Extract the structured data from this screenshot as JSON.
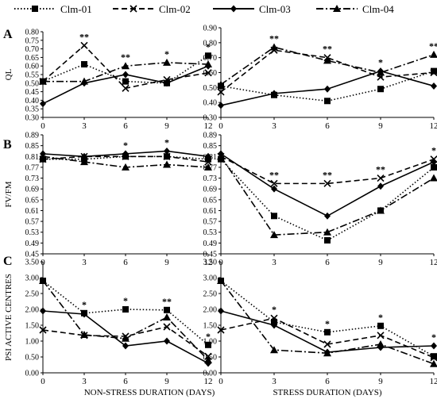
{
  "legend": {
    "placement": "top",
    "items": [
      {
        "name": "Clm-01",
        "marker": "square",
        "dash": "dotted"
      },
      {
        "name": "Clm-02",
        "marker": "x",
        "dash": "dashed"
      },
      {
        "name": "Clm-03",
        "marker": "diamond",
        "dash": "solid"
      },
      {
        "name": "Clm-04",
        "marker": "triangle",
        "dash": "dashdot"
      }
    ]
  },
  "row_labels": [
    "A",
    "B",
    "C"
  ],
  "x_axis_labels": [
    "NON-STRESS DURATION (DAYS)",
    "STRESS DURATION (DAYS)"
  ],
  "chart_data": [
    {
      "type": "line",
      "panel": "A-left",
      "ylabel": "QL",
      "xlabel": "",
      "x": [
        0,
        3,
        6,
        9,
        12
      ],
      "ylim": [
        0.3,
        0.8
      ],
      "yticks": [
        "0.30",
        "0.35",
        "0.40",
        "0.45",
        "0.50",
        "0.55",
        "0.60",
        "0.65",
        "0.70",
        "0.75",
        "0.80"
      ],
      "series": [
        {
          "name": "Clm-01",
          "values": [
            0.51,
            0.61,
            0.51,
            0.5,
            0.66
          ]
        },
        {
          "name": "Clm-02",
          "values": [
            0.51,
            0.72,
            0.47,
            0.52,
            0.56
          ]
        },
        {
          "name": "Clm-03",
          "values": [
            0.38,
            0.5,
            0.55,
            0.5,
            0.6
          ]
        },
        {
          "name": "Clm-04",
          "values": [
            0.51,
            0.51,
            0.6,
            0.62,
            0.61
          ]
        }
      ],
      "annotations": [
        {
          "x": 3,
          "label": "**"
        },
        {
          "x": 6,
          "label": "**"
        },
        {
          "x": 9,
          "label": "*"
        },
        {
          "x": 12,
          "label": "*"
        }
      ]
    },
    {
      "type": "line",
      "panel": "A-right",
      "ylabel": "",
      "xlabel": "",
      "x": [
        0,
        3,
        6,
        9,
        12
      ],
      "ylim": [
        0.3,
        0.9
      ],
      "yticks": [
        "0.30",
        "0.40",
        "0.50",
        "0.60",
        "0.70",
        "0.80",
        "0.90"
      ],
      "series": [
        {
          "name": "Clm-01",
          "values": [
            0.51,
            0.45,
            0.41,
            0.49,
            0.61
          ]
        },
        {
          "name": "Clm-02",
          "values": [
            0.47,
            0.75,
            0.7,
            0.57,
            0.6
          ]
        },
        {
          "name": "Clm-03",
          "values": [
            0.38,
            0.46,
            0.49,
            0.61,
            0.51
          ]
        },
        {
          "name": "Clm-04",
          "values": [
            0.52,
            0.77,
            0.68,
            0.6,
            0.72
          ]
        }
      ],
      "annotations": [
        {
          "x": 3,
          "label": "**"
        },
        {
          "x": 6,
          "label": "**"
        },
        {
          "x": 9,
          "label": "*"
        },
        {
          "x": 12,
          "label": "**"
        }
      ]
    },
    {
      "type": "line",
      "panel": "B-left",
      "ylabel": "FV/FM",
      "xlabel": "",
      "x": [
        0,
        3,
        6,
        9,
        12
      ],
      "ylim": [
        0.45,
        0.89
      ],
      "yticks": [
        "0.45",
        "0.49",
        "0.53",
        "0.57",
        "0.61",
        "0.65",
        "0.69",
        "0.73",
        "0.77",
        "0.81",
        "0.85",
        "0.89"
      ],
      "series": [
        {
          "name": "Clm-01",
          "values": [
            0.8,
            0.8,
            0.81,
            0.81,
            0.8
          ]
        },
        {
          "name": "Clm-02",
          "values": [
            0.8,
            0.81,
            0.81,
            0.81,
            0.79
          ]
        },
        {
          "name": "Clm-03",
          "values": [
            0.82,
            0.81,
            0.82,
            0.83,
            0.81
          ]
        },
        {
          "name": "Clm-04",
          "values": [
            0.81,
            0.79,
            0.77,
            0.78,
            0.77
          ]
        }
      ],
      "annotations": [
        {
          "x": 6,
          "label": "*"
        },
        {
          "x": 9,
          "label": "*"
        }
      ]
    },
    {
      "type": "line",
      "panel": "B-right",
      "ylabel": "",
      "xlabel": "",
      "x": [
        0,
        3,
        6,
        9,
        12
      ],
      "ylim": [
        0.45,
        0.89
      ],
      "yticks": [
        "0.45",
        "0.49",
        "0.53",
        "0.57",
        "0.61",
        "0.65",
        "0.69",
        "0.73",
        "0.77",
        "0.81",
        "0.85",
        "0.89"
      ],
      "series": [
        {
          "name": "Clm-01",
          "values": [
            0.8,
            0.59,
            0.5,
            0.61,
            0.77
          ]
        },
        {
          "name": "Clm-02",
          "values": [
            0.81,
            0.71,
            0.71,
            0.73,
            0.8
          ]
        },
        {
          "name": "Clm-03",
          "values": [
            0.82,
            0.69,
            0.59,
            0.7,
            0.79
          ]
        },
        {
          "name": "Clm-04",
          "values": [
            0.81,
            0.52,
            0.53,
            0.61,
            0.73
          ]
        }
      ],
      "annotations": [
        {
          "x": 3,
          "label": "**"
        },
        {
          "x": 6,
          "label": "**"
        },
        {
          "x": 9,
          "label": "**"
        },
        {
          "x": 12,
          "label": "*"
        }
      ]
    },
    {
      "type": "line",
      "panel": "C-left",
      "ylabel": "PSI ACTIVE CENTRES",
      "xlabel": "NON-STRESS DURATION (DAYS)",
      "x": [
        0,
        3,
        6,
        9,
        12
      ],
      "ylim": [
        0.0,
        3.5
      ],
      "yticks": [
        "0.00",
        "0.50",
        "1.00",
        "1.50",
        "2.00",
        "2.50",
        "3.00",
        "3.50"
      ],
      "series": [
        {
          "name": "Clm-01",
          "values": [
            2.9,
            1.88,
            2.0,
            1.98,
            0.88
          ]
        },
        {
          "name": "Clm-02",
          "values": [
            1.35,
            1.18,
            1.15,
            1.45,
            0.52
          ]
        },
        {
          "name": "Clm-03",
          "values": [
            1.95,
            1.85,
            0.85,
            1.0,
            0.3
          ]
        },
        {
          "name": "Clm-04",
          "values": [
            2.9,
            1.2,
            1.08,
            1.75,
            0.4
          ]
        }
      ],
      "annotations": [
        {
          "x": 3,
          "label": "*"
        },
        {
          "x": 6,
          "label": "*"
        },
        {
          "x": 9,
          "label": "**"
        },
        {
          "x": 12,
          "label": "*"
        }
      ]
    },
    {
      "type": "line",
      "panel": "C-right",
      "ylabel": "",
      "xlabel": "STRESS DURATION (DAYS)",
      "x": [
        0,
        3,
        6,
        9,
        12
      ],
      "ylim": [
        0.0,
        3.5
      ],
      "yticks": [
        "0.00",
        "0.50",
        "1.00",
        "1.50",
        "2.00",
        "2.50",
        "3.00",
        "3.50"
      ],
      "series": [
        {
          "name": "Clm-01",
          "values": [
            2.9,
            1.6,
            1.28,
            1.48,
            0.52
          ]
        },
        {
          "name": "Clm-02",
          "values": [
            1.35,
            1.72,
            0.9,
            1.18,
            0.48
          ]
        },
        {
          "name": "Clm-03",
          "values": [
            1.95,
            1.5,
            0.65,
            0.8,
            0.85
          ]
        },
        {
          "name": "Clm-04",
          "values": [
            2.9,
            0.72,
            0.62,
            0.9,
            0.28
          ]
        }
      ],
      "annotations": [
        {
          "x": 3,
          "label": "*"
        },
        {
          "x": 6,
          "label": "*"
        },
        {
          "x": 9,
          "label": "*"
        },
        {
          "x": 12,
          "label": "*"
        }
      ]
    }
  ]
}
